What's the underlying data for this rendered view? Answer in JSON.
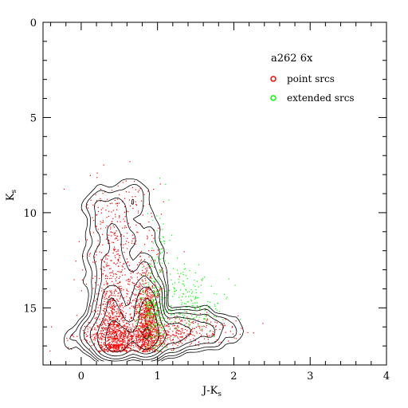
{
  "chart_data": {
    "type": "scatter",
    "title": "",
    "xlabel": "J-K",
    "xlabel_sub": "s",
    "ylabel": "K",
    "ylabel_sub": "s",
    "xlim": [
      -0.5,
      4
    ],
    "ylim": [
      18,
      0
    ],
    "y_inverted": true,
    "xticks": [
      0,
      1,
      2,
      3,
      4
    ],
    "yticks": [
      0,
      5,
      10,
      15
    ],
    "x_minor_step": 0.2,
    "y_minor_step": 1,
    "grid": false,
    "legend": {
      "placement": "top-right",
      "title": "a262 6x",
      "entries": [
        {
          "label": "point srcs",
          "color": "#ff0000"
        },
        {
          "label": "extended srcs",
          "color": "#00ff00"
        }
      ]
    },
    "series": [
      {
        "name": "point srcs",
        "color": "#ff0000",
        "clusters": [
          {
            "x": 0.42,
            "y": 16.1,
            "sx": 0.1,
            "sy": 1.6,
            "n": 650
          },
          {
            "x": 0.86,
            "y": 15.6,
            "sx": 0.08,
            "sy": 1.1,
            "n": 750
          },
          {
            "x": 0.6,
            "y": 16.5,
            "sx": 0.3,
            "sy": 0.35,
            "n": 500
          },
          {
            "x": 0.6,
            "y": 13.5,
            "sx": 0.25,
            "sy": 2.2,
            "n": 350
          },
          {
            "x": 1.1,
            "y": 16.3,
            "sx": 0.3,
            "sy": 0.45,
            "n": 250
          },
          {
            "x": 0.35,
            "y": 11.0,
            "sx": 0.18,
            "sy": 1.2,
            "n": 120
          },
          {
            "x": 0.55,
            "y": 9.5,
            "sx": 0.25,
            "sy": 0.8,
            "n": 40
          },
          {
            "x": 1.6,
            "y": 16.2,
            "sx": 0.35,
            "sy": 0.4,
            "n": 80
          }
        ]
      },
      {
        "name": "extended srcs",
        "color": "#00ff00",
        "clusters": [
          {
            "x": 1.25,
            "y": 14.5,
            "sx": 0.25,
            "sy": 0.9,
            "n": 180
          },
          {
            "x": 1.05,
            "y": 12.0,
            "sx": 0.08,
            "sy": 1.4,
            "n": 60
          },
          {
            "x": 0.95,
            "y": 15.2,
            "sx": 0.1,
            "sy": 1.0,
            "n": 200
          },
          {
            "x": 1.55,
            "y": 15.3,
            "sx": 0.18,
            "sy": 0.5,
            "n": 40
          }
        ]
      }
    ],
    "contour_levels": 8,
    "contour_color": "#000000"
  }
}
